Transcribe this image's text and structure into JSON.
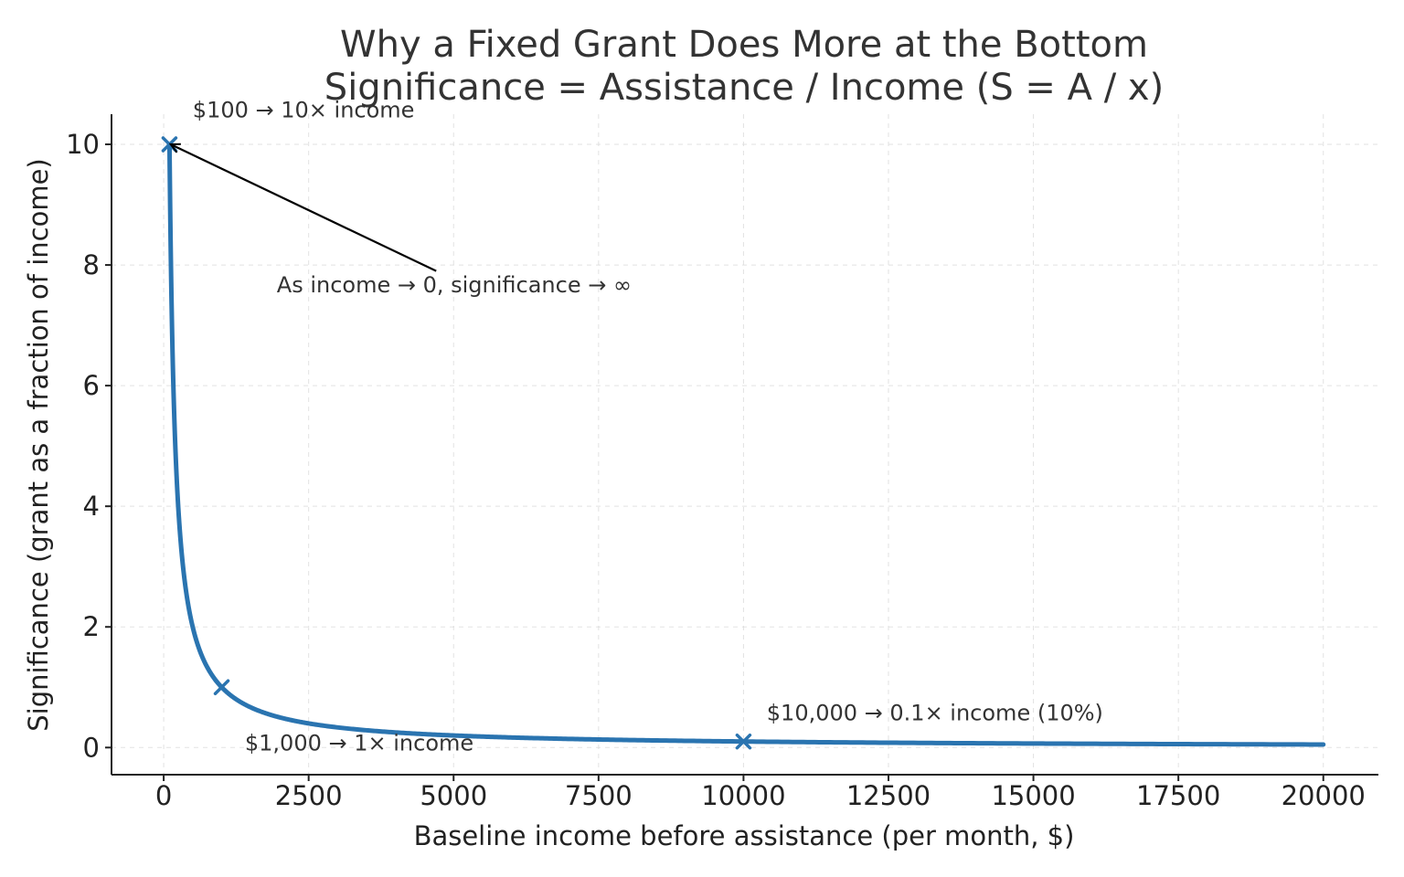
{
  "chart_data": {
    "type": "line",
    "title": "Why a Fixed Grant Does More at the Bottom",
    "subtitle": "Significance = Assistance / Income  (S = A / x)",
    "xlabel": "Baseline income before assistance (per month, $)",
    "ylabel": "Significance (grant as a fraction of income)",
    "xlim": [
      -900,
      20950
    ],
    "ylim": [
      -0.45,
      10.5
    ],
    "x_ticks": [
      0,
      2500,
      5000,
      7500,
      10000,
      12500,
      15000,
      17500,
      20000
    ],
    "y_ticks": [
      0,
      2,
      4,
      6,
      8,
      10
    ],
    "grid": true,
    "legend": "none",
    "colors": {
      "curve": "#2a74b0",
      "marker": "#2a74b0",
      "arrow": "#000000"
    },
    "series": [
      {
        "assistance": 1000,
        "x_range": [
          100,
          20000
        ],
        "formula": "S = A / x"
      }
    ],
    "markers": [
      {
        "x": 100,
        "y": 10
      },
      {
        "x": 1000,
        "y": 1
      },
      {
        "x": 10000,
        "y": 0.1
      }
    ],
    "annotations": [
      {
        "text": "$100 → 10× income",
        "x": 500,
        "y": 10.45
      },
      {
        "text": "$1,000 → 1× income",
        "x": 1400,
        "y": -0.05
      },
      {
        "text": "$10,000 → 0.1× income (10%)",
        "x": 10400,
        "y": 0.45
      },
      {
        "text": "As income → 0, significance → ∞",
        "x": 1950,
        "y": 7.55,
        "arrow_from": [
          4700,
          7.9
        ],
        "arrow_to": [
          120,
          10
        ]
      }
    ]
  }
}
